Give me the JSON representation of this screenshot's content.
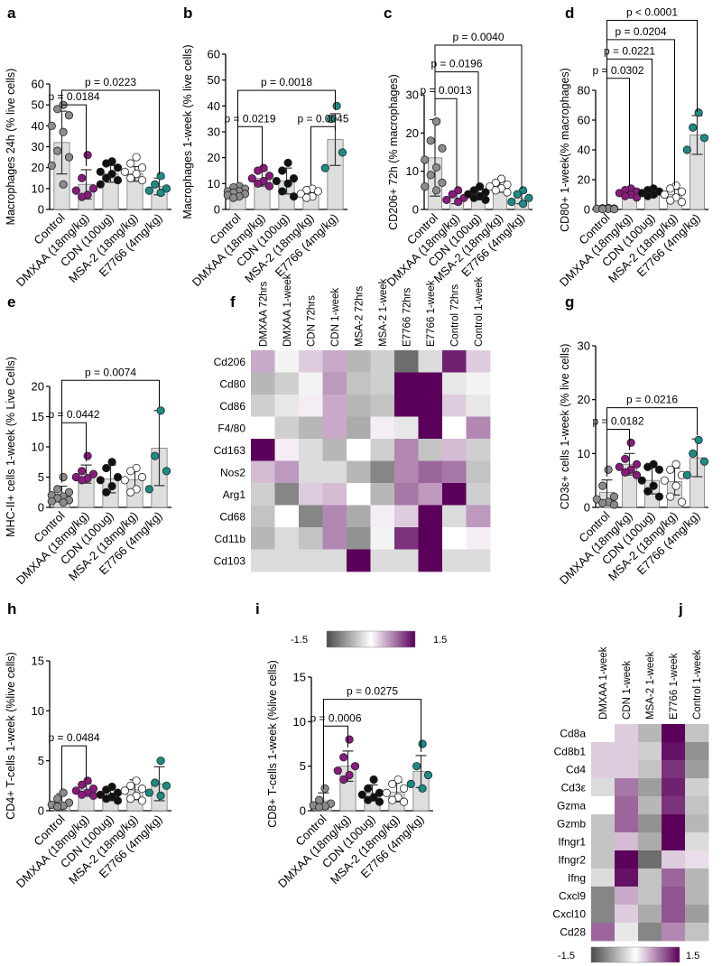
{
  "figure": {
    "panels": [
      "a",
      "b",
      "c",
      "d",
      "e",
      "f",
      "g",
      "h",
      "i",
      "j"
    ],
    "colors": {
      "gray": "#8c8c8c",
      "purple": "#8a1a7e",
      "black": "#111111",
      "white": "#ffffff",
      "teal": "#1a8c84",
      "bar": "#dedede"
    }
  },
  "chart_data": [
    {
      "panel": "a",
      "type": "bar",
      "ylabel": "Macrophages 24h (% live cells)",
      "ylim": [
        0,
        60
      ],
      "yticks": [
        0,
        10,
        20,
        30,
        40,
        50,
        60
      ],
      "categories": [
        "Control",
        "DMXAA (18mg/kg)",
        "CDN (100ug)",
        "MSA-2 (18mg/kg)",
        "E7766 (4mg/kg)"
      ],
      "values": [
        32,
        12,
        17,
        17,
        11
      ],
      "errors": [
        15,
        7,
        4,
        3.5,
        4
      ],
      "dot_colors": [
        "gray",
        "purple",
        "black",
        "white",
        "teal"
      ],
      "points": [
        [
          50,
          48,
          45,
          40,
          37,
          28,
          25,
          21,
          12
        ],
        [
          26,
          15,
          10,
          9,
          7,
          6
        ],
        [
          23,
          22,
          20,
          18,
          17,
          15,
          14,
          12
        ],
        [
          25,
          22,
          20,
          18,
          17,
          15,
          14
        ],
        [
          16,
          12,
          10,
          9,
          8
        ]
      ],
      "comparisons": [
        {
          "from": 0,
          "to": 1,
          "label": "p = 0.0184",
          "y": 50
        },
        {
          "from": 0,
          "to": 4,
          "label": "p = 0.0223",
          "y": 57
        }
      ]
    },
    {
      "panel": "b",
      "type": "bar",
      "ylabel": "Macrophages 1-week  (% live cells)",
      "ylim": [
        0,
        60
      ],
      "yticks": [
        0,
        10,
        20,
        30,
        40,
        50,
        60
      ],
      "categories": [
        "Control",
        "DMXAA (18mg/kg)",
        "CDN (100ug)",
        "MSA-2 (18mg/kg)",
        "E7766 (4mg/kg)"
      ],
      "values": [
        7,
        12,
        11,
        6.5,
        27
      ],
      "errors": [
        2,
        3,
        5,
        1.5,
        10
      ],
      "dot_colors": [
        "gray",
        "purple",
        "black",
        "white",
        "teal"
      ],
      "points": [
        [
          9,
          8.5,
          8,
          7,
          7,
          6.5,
          6,
          5.5,
          5,
          4.5
        ],
        [
          16,
          15,
          13,
          12,
          11,
          10,
          9
        ],
        [
          18,
          15,
          12,
          11,
          10,
          7,
          5
        ],
        [
          8,
          7.5,
          7,
          6,
          5,
          4.5
        ],
        [
          40,
          35,
          22,
          16
        ]
      ],
      "comparisons": [
        {
          "from": 0,
          "to": 1,
          "label": "p = 0.0219",
          "y": 32
        },
        {
          "from": 3,
          "to": 4,
          "label": "p = 0.0045",
          "y": 32
        },
        {
          "from": 0,
          "to": 4,
          "label": "p = 0.0018",
          "y": 46
        }
      ]
    },
    {
      "panel": "c",
      "type": "bar",
      "ylabel": "CD206+ 72h (% macrophages)",
      "ylim": [
        0,
        30
      ],
      "yticks": [
        0,
        10,
        20,
        30
      ],
      "categories": [
        "Control",
        "DMXAA (18mg/kg)",
        "CDN (100ug)",
        "MSA-2 (18mg/kg)",
        "E7766 (4mg/kg)"
      ],
      "values": [
        13.5,
        3,
        4,
        6,
        3
      ],
      "errors": [
        10,
        1.5,
        1.5,
        1.5,
        1.5
      ],
      "dot_colors": [
        "gray",
        "purple",
        "black",
        "white",
        "teal"
      ],
      "points": [
        [
          23,
          18,
          16,
          13,
          11,
          9,
          7,
          6,
          5
        ],
        [
          5,
          4,
          3,
          2.5,
          2
        ],
        [
          6,
          5,
          4.5,
          4,
          3.5,
          3,
          2.5
        ],
        [
          8,
          7,
          6.5,
          6,
          5.5,
          5,
          4.5
        ],
        [
          5,
          4,
          3,
          2,
          1.5
        ]
      ],
      "comparisons": [
        {
          "from": 0,
          "to": 1,
          "label": "p = 0.0013",
          "y": 29
        },
        {
          "from": 0,
          "to": 2,
          "label": "p = 0.0196",
          "y": 36
        },
        {
          "from": 0,
          "to": 4,
          "label": "p = 0.0040",
          "y": 43
        }
      ]
    },
    {
      "panel": "d",
      "type": "bar",
      "ylabel": "CD80+ 1-week(% macrophages)",
      "ylim": [
        0,
        80
      ],
      "yticks": [
        0,
        20,
        40,
        60,
        80
      ],
      "categories": [
        "Control",
        "DMXAA (18mg/kg)",
        "CDN (100ug)",
        "MSA-2 (18mg/kg)",
        "E7766 (4mg/kg)"
      ],
      "values": [
        0.5,
        11,
        11,
        10,
        50
      ],
      "errors": [
        0.5,
        2.5,
        2.5,
        3.5,
        13
      ],
      "dot_colors": [
        "gray",
        "purple",
        "black",
        "white",
        "teal"
      ],
      "points": [
        [
          1,
          0.8,
          0.6,
          0.5,
          0.4,
          0.3,
          0.2
        ],
        [
          14,
          13,
          12,
          11,
          10,
          9,
          8
        ],
        [
          14,
          13,
          12,
          11,
          10,
          9
        ],
        [
          16,
          14,
          12,
          10,
          8,
          6,
          5
        ],
        [
          65,
          55,
          48,
          40
        ]
      ],
      "comparisons": [
        {
          "from": 0,
          "to": 1,
          "label": "p = 0.0302",
          "y": 88
        },
        {
          "from": 0,
          "to": 2,
          "label": "p = 0.0221",
          "y": 101
        },
        {
          "from": 0,
          "to": 3,
          "label": "p = 0.0204",
          "y": 114
        },
        {
          "from": 0,
          "to": 4,
          "label": "p < 0.0001",
          "y": 127
        }
      ]
    },
    {
      "panel": "e",
      "type": "bar",
      "ylabel": "MHC-II+ cells 1-week (% Live Cells)",
      "ylim": [
        0,
        20
      ],
      "yticks": [
        0,
        5,
        10,
        15,
        20
      ],
      "categories": [
        "Control",
        "DMXAA (18mg/kg)",
        "CDN (100ug)",
        "MSA-2 (18mg/kg)",
        "E7766 (4mg/kg)"
      ],
      "values": [
        2.2,
        5.5,
        4.7,
        4.6,
        9.8
      ],
      "errors": [
        1.3,
        1.5,
        2.3,
        1.8,
        6.2
      ],
      "dot_colors": [
        "gray",
        "purple",
        "black",
        "white",
        "teal"
      ],
      "points": [
        [
          5,
          3,
          2.5,
          2,
          1.8,
          1.5,
          1.2,
          1,
          0.8
        ],
        [
          8.5,
          6,
          5.5,
          5,
          4.8,
          4.5
        ],
        [
          7.5,
          6.5,
          5,
          4.5,
          3.5,
          2.5
        ],
        [
          6.5,
          6,
          5,
          4.5,
          3,
          2.5
        ],
        [
          16,
          8.5,
          6,
          3
        ]
      ],
      "comparisons": [
        {
          "from": 0,
          "to": 1,
          "label": "p = 0.0442",
          "y": 14
        },
        {
          "from": 0,
          "to": 4,
          "label": "p = 0.0074",
          "y": 21
        }
      ]
    },
    {
      "panel": "g",
      "type": "bar",
      "ylabel": "CD3ε+ cells 1-week (% live cells)",
      "ylim": [
        0,
        30
      ],
      "yticks": [
        0,
        10,
        20,
        30
      ],
      "categories": [
        "Control",
        "DMXAA (18mg/kg)",
        "CDN (100ug)",
        "MSA-2 (18mg/kg)",
        "E7766 (4mg/kg)"
      ],
      "values": [
        2.8,
        8,
        5,
        4.8,
        9.2
      ],
      "errors": [
        2.3,
        2,
        2.5,
        2.5,
        3.5
      ],
      "dot_colors": [
        "gray",
        "purple",
        "black",
        "white",
        "teal"
      ],
      "points": [
        [
          7,
          4,
          2,
          1.5,
          1,
          0.8,
          0.5
        ],
        [
          12,
          9,
          8,
          7.5,
          7,
          6.5,
          6
        ],
        [
          8,
          7.5,
          7,
          5,
          4,
          3,
          2
        ],
        [
          8,
          7,
          6,
          5,
          4,
          2,
          1
        ],
        [
          12.5,
          10,
          8.5,
          6
        ]
      ],
      "comparisons": [
        {
          "from": 0,
          "to": 1,
          "label": "p = 0.0182",
          "y": 14.5
        },
        {
          "from": 0,
          "to": 4,
          "label": "p = 0.0216",
          "y": 18.5
        }
      ]
    },
    {
      "panel": "h",
      "type": "bar",
      "ylabel": "CD4+ T-cells 1-week (%live cells)",
      "ylim": [
        0,
        15
      ],
      "yticks": [
        0,
        5,
        10,
        15
      ],
      "categories": [
        "Control",
        "DMXAA (18mg/kg)",
        "CDN (100ug)",
        "MSA-2 (18mg/kg)",
        "E7766 (4mg/kg)"
      ],
      "values": [
        0.8,
        2.1,
        1.7,
        2.1,
        2.7
      ],
      "errors": [
        0.9,
        0.6,
        0.7,
        1.0,
        1.7
      ],
      "dot_colors": [
        "gray",
        "purple",
        "black",
        "white",
        "teal"
      ],
      "points": [
        [
          1.8,
          1.2,
          0.8,
          0.6,
          0.5,
          0.4
        ],
        [
          3,
          2.6,
          2.2,
          2,
          1.8,
          1.6,
          1.5
        ],
        [
          2.4,
          2.1,
          1.8,
          1.6,
          1.4,
          1.2,
          1.0
        ],
        [
          3,
          2.5,
          2.2,
          2,
          1.5,
          1.2,
          1.0
        ],
        [
          5,
          2.8,
          2.5,
          1.8,
          1.5
        ]
      ],
      "comparisons": [
        {
          "from": 0,
          "to": 1,
          "label": "p = 0.0484",
          "y": 6.5
        }
      ]
    },
    {
      "panel": "i",
      "type": "bar",
      "ylabel": "CD8+ T-cells 1-week (%live cells)",
      "ylim": [
        0,
        15
      ],
      "yticks": [
        0,
        5,
        10,
        15
      ],
      "categories": [
        "Control",
        "DMXAA (18mg/kg)",
        "CDN (100ug)",
        "MSA-2 (18mg/kg)",
        "E7766 (4mg/kg)"
      ],
      "values": [
        1.1,
        5,
        2,
        2.1,
        4.4
      ],
      "errors": [
        0.9,
        1.7,
        0.9,
        1.1,
        1.8
      ],
      "dot_colors": [
        "gray",
        "purple",
        "black",
        "white",
        "teal"
      ],
      "points": [
        [
          2.5,
          1.2,
          0.8,
          0.6,
          0.5,
          0.4
        ],
        [
          8,
          6,
          5,
          4.5,
          4,
          3.5
        ],
        [
          3.5,
          2.5,
          2,
          1.8,
          1.5,
          1.2,
          1.0
        ],
        [
          3.5,
          3,
          2.5,
          2,
          1.5,
          1.2,
          1.0
        ],
        [
          7.5,
          5,
          4,
          3,
          2.5
        ]
      ],
      "comparisons": [
        {
          "from": 0,
          "to": 1,
          "label": "p = 0.0006",
          "y": 9.5
        },
        {
          "from": 0,
          "to": 4,
          "label": "p = 0.0275",
          "y": 12.5
        }
      ]
    },
    {
      "panel": "f",
      "type": "heatmap",
      "columns": [
        "DMXAA 72hrs",
        "DMXAA 1-week",
        "CDN 72hrs",
        "CDN 1-week",
        "MSA-2 72hrs",
        "MSA-2 1-week",
        "E7766 72hrs",
        "E7766 1-week",
        "Control 72hrs",
        "Control 1-week"
      ],
      "rows": [
        "Cd206",
        "Cd80",
        "Cd86",
        "F4/80",
        "Cd163",
        "Nos2",
        "Arg1",
        "Cd68",
        "Cd11b",
        "Cd103"
      ],
      "values": [
        [
          0.5,
          -0.1,
          0.3,
          0.5,
          -0.6,
          -0.4,
          -1.2,
          -0.3,
          1.3,
          0.3
        ],
        [
          -0.6,
          -0.4,
          -0.1,
          0.6,
          -0.5,
          -0.4,
          1.5,
          1.5,
          -0.2,
          -0.1
        ],
        [
          -0.4,
          -0.2,
          0.1,
          0.5,
          -0.6,
          -0.5,
          1.5,
          1.5,
          0.3,
          -0.2
        ],
        [
          0.0,
          -0.4,
          -0.6,
          0.5,
          -0.7,
          0.1,
          -0.2,
          1.5,
          0.0,
          0.7
        ],
        [
          1.5,
          0.1,
          -0.3,
          -0.6,
          0.0,
          -0.4,
          0.7,
          -0.5,
          0.4,
          -0.4
        ],
        [
          0.4,
          0.6,
          -0.3,
          -0.3,
          -0.6,
          -1.0,
          0.7,
          0.9,
          0.8,
          -0.5
        ],
        [
          -0.4,
          -1.0,
          0.3,
          0.4,
          0.0,
          -0.6,
          0.8,
          0.6,
          1.5,
          -0.4
        ],
        [
          -0.5,
          0.0,
          -1.0,
          0.7,
          -0.7,
          0.1,
          0.3,
          1.5,
          -0.3,
          0.6
        ],
        [
          -0.6,
          -0.3,
          -0.5,
          0.7,
          -0.9,
          -0.1,
          1.2,
          1.5,
          0.0,
          0.1
        ],
        [
          -0.3,
          -0.3,
          -0.3,
          -0.3,
          1.5,
          -0.3,
          -0.3,
          1.5,
          -0.3,
          -0.3
        ]
      ],
      "scale": {
        "min": -1.5,
        "max": 1.5,
        "min_label": "-1.5",
        "max_label": "1.5"
      }
    },
    {
      "panel": "j",
      "type": "heatmap",
      "columns": [
        "DMXAA 1-week",
        "CDN 1-week",
        "MSA-2 1-week",
        "E7766 1-week",
        "Control 1-week"
      ],
      "rows": [
        "Cd8a",
        "Cd8b1",
        "Cd4",
        "Cd3ε",
        "Gzma",
        "Gzmb",
        "Ifngr1",
        "Ifngr2",
        "Ifng",
        "Cxcl9",
        "Cxcl10",
        "Cd28"
      ],
      "values": [
        [
          0.0,
          0.3,
          -0.6,
          1.5,
          -0.5
        ],
        [
          0.3,
          0.3,
          -0.4,
          1.4,
          -0.9
        ],
        [
          0.3,
          0.3,
          -0.5,
          1.2,
          -0.8
        ],
        [
          -0.3,
          0.8,
          -0.8,
          1.3,
          -0.4
        ],
        [
          0.0,
          0.9,
          -0.6,
          1.2,
          -0.5
        ],
        [
          -0.5,
          0.9,
          -0.9,
          1.5,
          -0.6
        ],
        [
          -0.5,
          0.4,
          -0.7,
          1.5,
          -0.3
        ],
        [
          -0.5,
          1.5,
          -1.2,
          0.3,
          0.2
        ],
        [
          -0.3,
          1.4,
          -0.5,
          0.9,
          -0.6
        ],
        [
          -1.0,
          0.5,
          -0.5,
          1.0,
          -0.6
        ],
        [
          -1.0,
          0.3,
          -0.7,
          1.0,
          -0.8
        ],
        [
          0.9,
          -0.2,
          -1.0,
          0.7,
          -0.5
        ]
      ],
      "scale": {
        "min": -1.5,
        "max": 1.5,
        "min_label": "-1.5",
        "max_label": "1.5"
      }
    }
  ]
}
